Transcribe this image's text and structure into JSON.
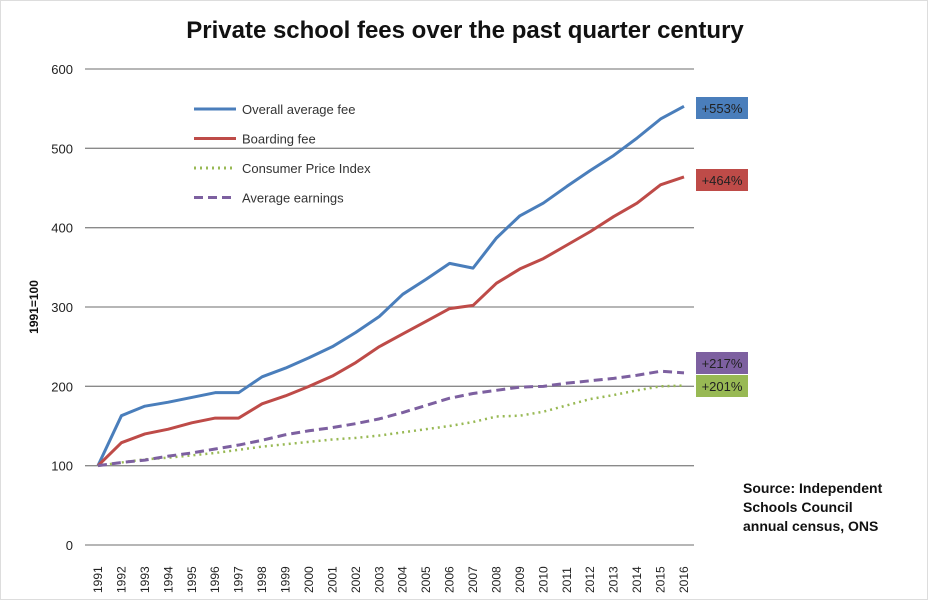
{
  "chart_data": {
    "type": "line",
    "title": "Private school fees over the past quarter century",
    "ylabel": "1991=100",
    "xlabel": "",
    "ylim": [
      0,
      600
    ],
    "yticks": [
      0,
      100,
      200,
      300,
      400,
      500,
      600
    ],
    "grid": true,
    "legend_placement": "top-left",
    "x": [
      "1991",
      "1992",
      "1993",
      "1994",
      "1995",
      "1996",
      "1997",
      "1998",
      "1999",
      "2000",
      "2001",
      "2002",
      "2003",
      "2004",
      "2005",
      "2006",
      "2007",
      "2008",
      "2009",
      "2010",
      "2011",
      "2012",
      "2013",
      "2014",
      "2015",
      "2016"
    ],
    "series": [
      {
        "name": "Overall average fee",
        "color": "#4a7ebb",
        "style": "solid",
        "end_label": "+553%",
        "values": [
          100,
          163,
          175,
          180,
          186,
          192,
          192,
          212,
          223,
          236,
          250,
          268,
          288,
          316,
          335,
          355,
          349,
          387,
          415,
          431,
          452,
          472,
          491,
          513,
          537,
          553
        ]
      },
      {
        "name": "Boarding fee",
        "color": "#be4b48",
        "style": "solid",
        "end_label": "+464%",
        "values": [
          100,
          129,
          140,
          146,
          154,
          160,
          160,
          178,
          188,
          200,
          213,
          230,
          250,
          266,
          282,
          298,
          302,
          330,
          348,
          361,
          378,
          395,
          414,
          431,
          454,
          464
        ]
      },
      {
        "name": "Consumer Price Index",
        "color": "#98b954",
        "style": "dotted",
        "end_label": "+201%",
        "values": [
          100,
          104,
          108,
          110,
          113,
          116,
          120,
          124,
          127,
          130,
          133,
          135,
          138,
          142,
          146,
          150,
          155,
          162,
          163,
          168,
          176,
          184,
          189,
          195,
          200,
          201
        ]
      },
      {
        "name": "Average earnings",
        "color": "#7d60a0",
        "style": "dashed",
        "end_label": "+217%",
        "values": [
          100,
          104,
          107,
          112,
          116,
          121,
          126,
          132,
          139,
          144,
          148,
          153,
          159,
          167,
          176,
          185,
          191,
          195,
          199,
          200,
          204,
          207,
          210,
          214,
          219,
          217
        ]
      }
    ],
    "source": [
      "Source: Independent",
      "Schools Council",
      "annual census, ONS"
    ]
  }
}
